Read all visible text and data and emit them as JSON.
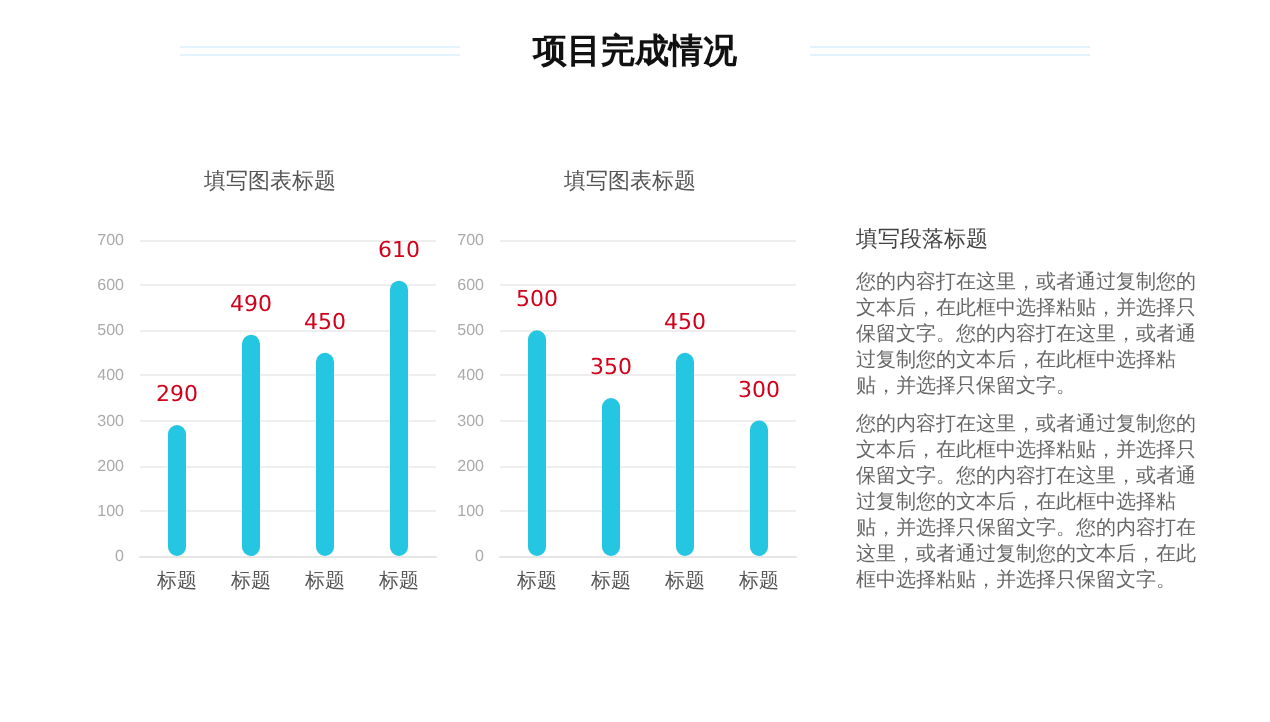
{
  "chart_data": [
    {
      "type": "other",
      "title": "项目完成情况"
    },
    {
      "type": "bar",
      "title": "填写图表标题",
      "categories": [
        "标题",
        "标题",
        "标题",
        "标题"
      ],
      "values": [
        290,
        490,
        450,
        610
      ],
      "color": "#24c6e2",
      "ylim": [
        0,
        700
      ],
      "yticks": [
        0,
        100,
        200,
        300,
        400,
        500,
        600,
        700
      ],
      "grid": "y",
      "data_labels": true
    },
    {
      "type": "bar",
      "title": "填写图表标题",
      "categories": [
        "标题",
        "标题",
        "标题",
        "标题"
      ],
      "values": [
        500,
        350,
        450,
        300
      ],
      "color": "#24c6e2",
      "ylim": [
        0,
        700
      ],
      "yticks": [
        0,
        100,
        200,
        300,
        400,
        500,
        600,
        700
      ],
      "grid": "y",
      "data_labels": true
    },
    {
      "type": "other",
      "title": "填写段落标题",
      "annotations": [
        "您的内容打在这里，或者通过复制您的文本后，在此框中选择粘贴，并选择只保留文字。您的内容打在这里，或者通过复制您的文本后，在此框中选择粘贴，并选择只保留文字。",
        "您的内容打在这里，或者通过复制您的文本后，在此框中选择粘贴，并选择只保留文字。您的内容打在这里，或者通过复制您的文本后，在此框中选择粘贴，并选择只保留文字。您的内容打在这里，或者通过复制您的文本后，在此框中选择粘贴，并选择只保留文字。"
      ]
    }
  ]
}
